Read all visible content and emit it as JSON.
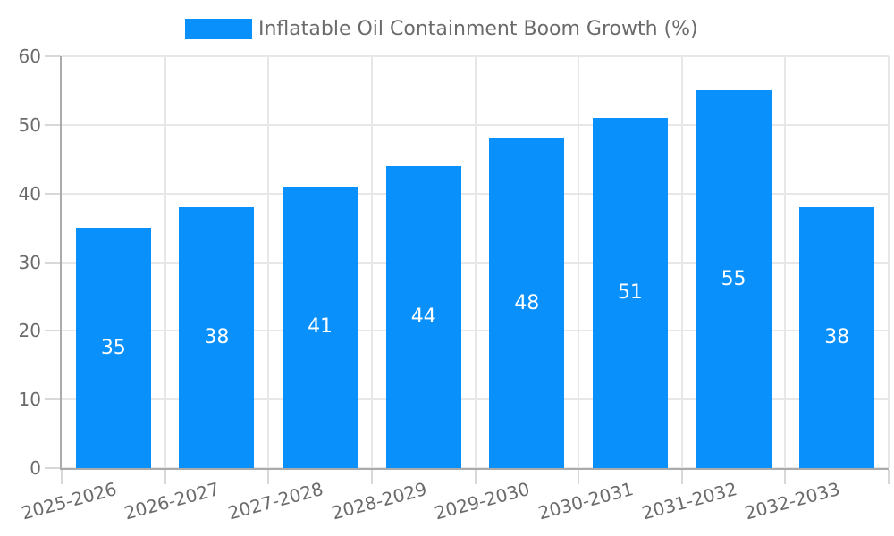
{
  "chart_data": {
    "type": "bar",
    "legend": {
      "label": "Inflatable Oil Containment Boom Growth (%)",
      "position": "top-center"
    },
    "categories": [
      "2025-2026",
      "2026-2027",
      "2027-2028",
      "2028-2029",
      "2029-2030",
      "2030-2031",
      "2031-2032",
      "2032-2033"
    ],
    "series": [
      {
        "name": "Inflatable Oil Containment Boom Growth (%)",
        "values": [
          35,
          38,
          41,
          44,
          48,
          51,
          55,
          38
        ]
      }
    ],
    "value_labels": {
      "visible": true,
      "position": "center"
    },
    "xlabel": "",
    "ylabel": "",
    "ylim": [
      0,
      60
    ],
    "yticks": [
      0,
      10,
      20,
      30,
      40,
      50,
      60
    ],
    "grid": true,
    "x_tick_rotation_deg": -15,
    "colors": {
      "bar": "#0a90fa",
      "grid": "#e7e7e7",
      "tick": "#d8d8d8",
      "axis": "#ababab",
      "text": "#6b6b6b",
      "value_label": "#ffffff",
      "background": "#ffffff"
    }
  }
}
